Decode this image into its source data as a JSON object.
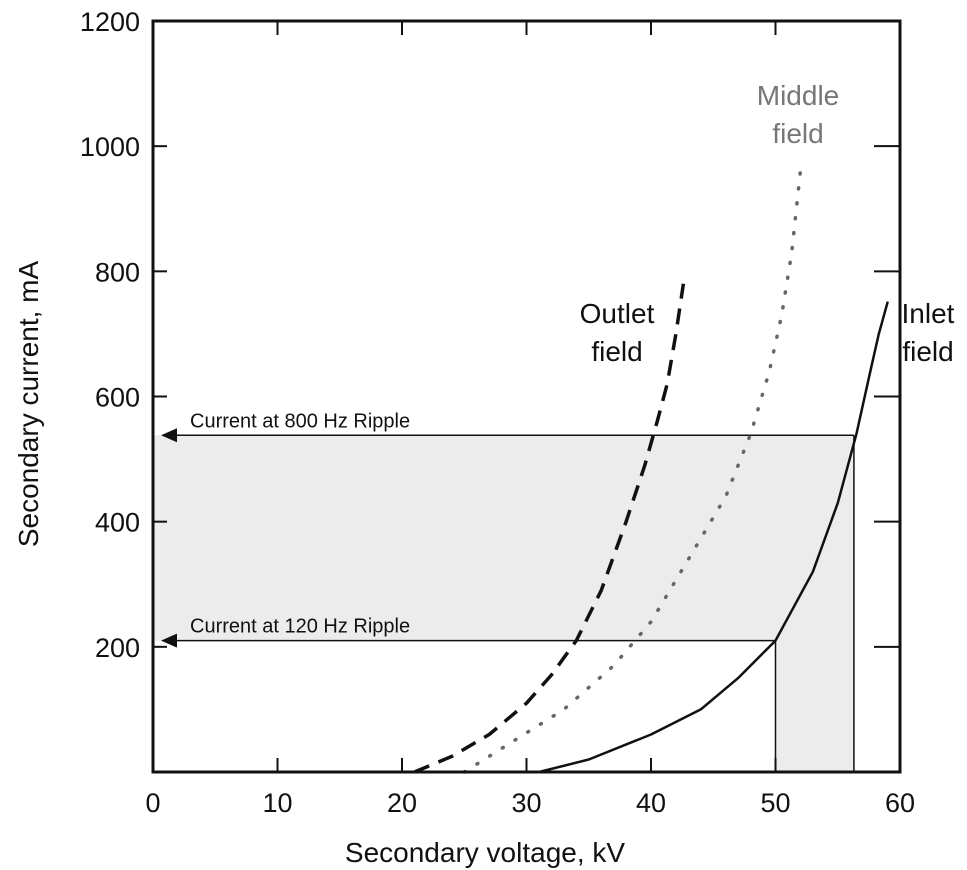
{
  "chart_data": {
    "type": "line",
    "title": "",
    "xlabel": "Secondary voltage, kV",
    "ylabel": "Secondary current, mA",
    "xlim": [
      0,
      60
    ],
    "ylim": [
      0,
      1200
    ],
    "x_ticks": [
      0,
      10,
      20,
      30,
      40,
      50,
      60
    ],
    "y_ticks": [
      200,
      400,
      600,
      800,
      1000,
      1200
    ],
    "grid": false,
    "series": [
      {
        "name": "Outlet field",
        "label_lines": [
          "Outlet",
          "field"
        ],
        "style": "dashed",
        "color": "#111111",
        "x": [
          21,
          24,
          27,
          30,
          32,
          34,
          36,
          38,
          39.5,
          40.5,
          41.3,
          42,
          42.6
        ],
        "y": [
          0,
          25,
          60,
          110,
          155,
          210,
          290,
          400,
          490,
          560,
          620,
          700,
          780
        ]
      },
      {
        "name": "Middle field",
        "label_lines": [
          "Middle",
          "field"
        ],
        "style": "dotted",
        "color": "#666666",
        "x": [
          25,
          29,
          33,
          37,
          40,
          43,
          46,
          48,
          49.5,
          50.5,
          51.3,
          52
        ],
        "y": [
          0,
          50,
          100,
          170,
          240,
          340,
          440,
          540,
          640,
          730,
          830,
          960
        ]
      },
      {
        "name": "Inlet field",
        "label_lines": [
          "Inlet",
          "field"
        ],
        "style": "solid",
        "color": "#111111",
        "x": [
          31,
          35,
          40,
          44,
          47,
          49,
          50,
          53,
          55,
          56.5,
          57.5,
          58.3,
          59
        ],
        "y": [
          0,
          20,
          60,
          100,
          150,
          190,
          210,
          320,
          430,
          540,
          630,
          700,
          750
        ]
      }
    ],
    "annotations": [
      {
        "text": "Current at 800 Hz Ripple",
        "y": 538,
        "x_end": 56.3
      },
      {
        "text": "Current at 120 Hz Ripple",
        "y": 210,
        "x_end": 50
      }
    ],
    "shaded_region_color": "#ececec"
  }
}
